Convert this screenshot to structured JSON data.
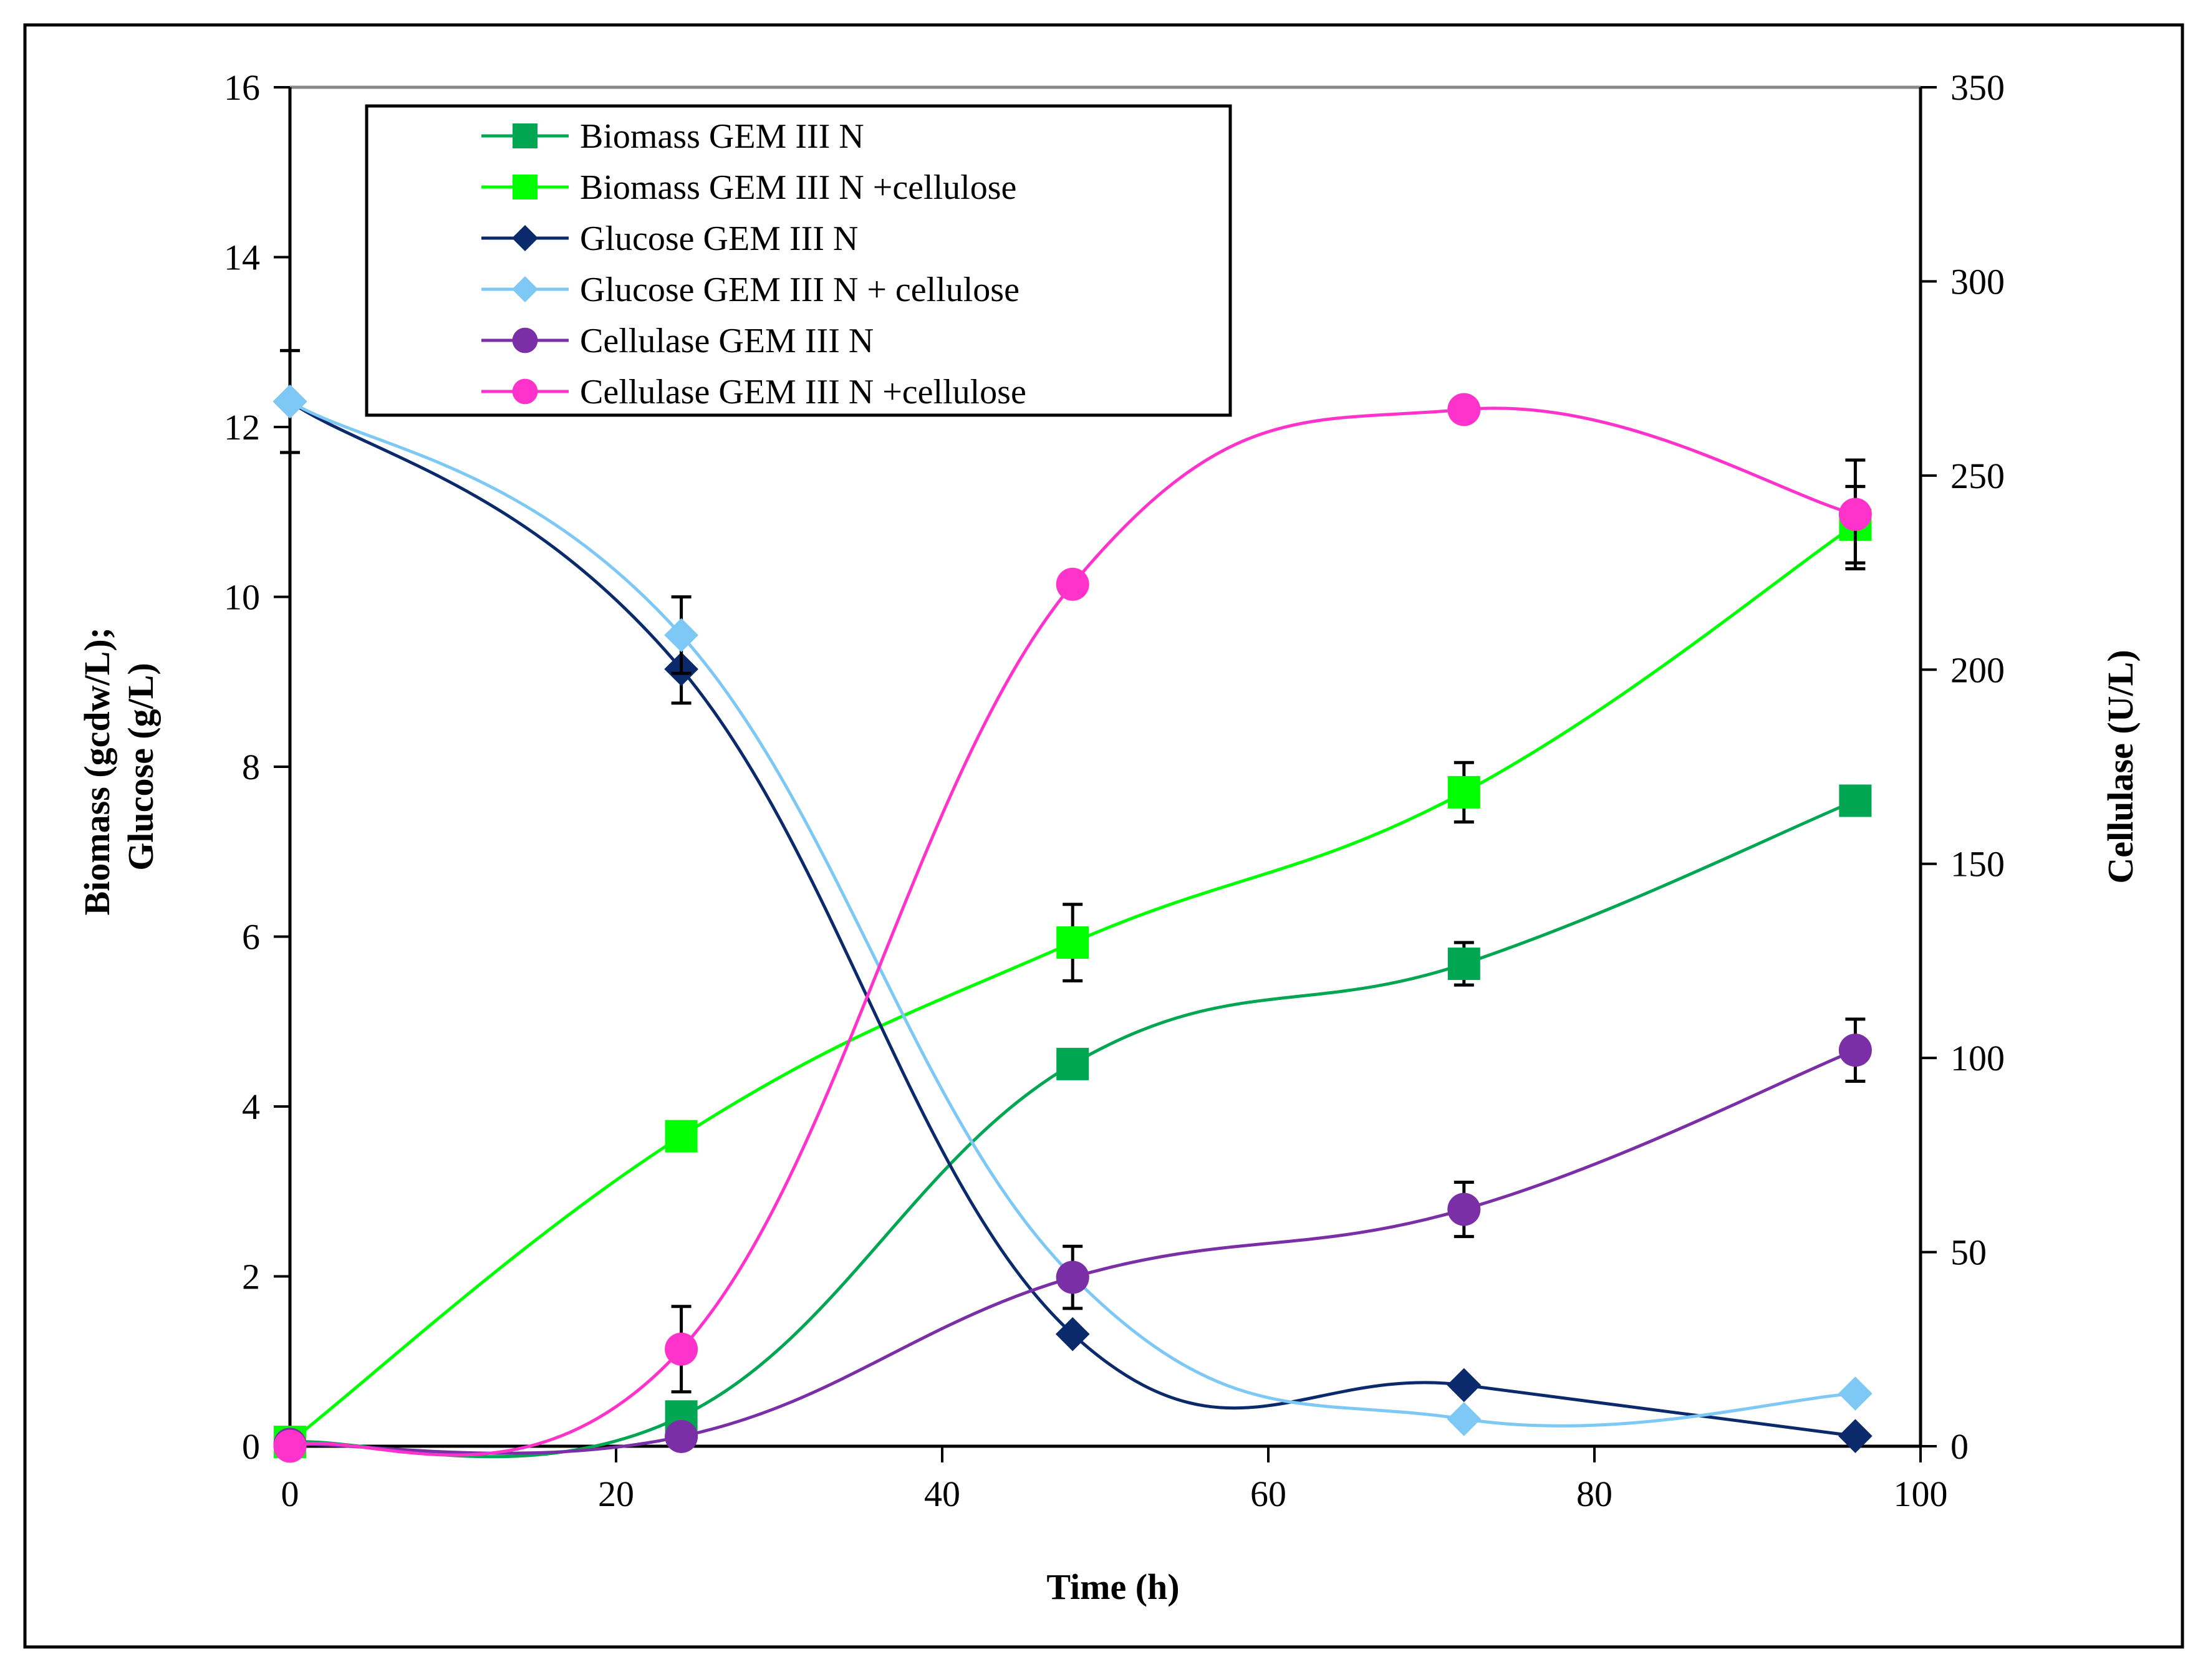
{
  "chart_data": {
    "type": "line",
    "xlabel": "Time (h)",
    "ylabel_left": "Biomass (gcdw/L);\nGlucose (g/L)",
    "ylabel_left_lines": [
      "Biomass (gcdw/L);",
      "Glucose (g/L)"
    ],
    "ylabel_right": "Cellulase (U/L)",
    "xlim": [
      0,
      100
    ],
    "ylim_left": [
      0,
      16
    ],
    "ylim_right": [
      0,
      350
    ],
    "xticks": [
      "0",
      "20",
      "40",
      "60",
      "80",
      "100"
    ],
    "xtick_values": [
      0,
      20,
      40,
      60,
      80,
      100
    ],
    "yticks_left": [
      "0",
      "2",
      "4",
      "6",
      "8",
      "10",
      "12",
      "14",
      "16"
    ],
    "ytick_values_left": [
      0,
      2,
      4,
      6,
      8,
      10,
      12,
      14,
      16
    ],
    "yticks_right": [
      "0",
      "50",
      "100",
      "150",
      "200",
      "250",
      "300",
      "350"
    ],
    "ytick_values_right": [
      0,
      50,
      100,
      150,
      200,
      250,
      300,
      350
    ],
    "legend_position": "top-left",
    "series": [
      {
        "name": "Biomass GEM III N",
        "axis": "left",
        "marker": "square",
        "color": "#00A651",
        "x": [
          0,
          24,
          48,
          72,
          96
        ],
        "y": [
          0.05,
          0.35,
          4.5,
          5.68,
          7.6
        ],
        "err": [
          0,
          0,
          0,
          0.25,
          0
        ]
      },
      {
        "name": "Biomass GEM III N +cellulose",
        "axis": "left",
        "marker": "square",
        "color": "#00FF00",
        "x": [
          0,
          24,
          48,
          72,
          96
        ],
        "y": [
          0.05,
          3.65,
          5.93,
          7.7,
          10.85
        ],
        "err": [
          0,
          0,
          0.45,
          0.35,
          0.45
        ]
      },
      {
        "name": "Glucose GEM III N",
        "axis": "left",
        "marker": "diamond",
        "color": "#0A2A6B",
        "x": [
          0,
          24,
          48,
          72,
          96
        ],
        "y": [
          12.3,
          9.15,
          1.32,
          0.72,
          0.12
        ],
        "err": [
          0,
          0.4,
          0,
          0,
          0
        ]
      },
      {
        "name": "Glucose GEM III N + cellulose",
        "axis": "left",
        "marker": "diamond",
        "color": "#7EC8F5",
        "x": [
          0,
          24,
          48,
          72,
          96
        ],
        "y": [
          12.3,
          9.55,
          2.0,
          0.32,
          0.62
        ],
        "err": [
          0.6,
          0.45,
          0,
          0,
          0
        ]
      },
      {
        "name": "Cellulase GEM III N",
        "axis": "right",
        "marker": "circle",
        "color": "#7B2FA6",
        "x": [
          0,
          24,
          48,
          72,
          96
        ],
        "y": [
          0.5,
          2.5,
          43.5,
          61,
          102
        ],
        "err": [
          0,
          0,
          8,
          7,
          8
        ]
      },
      {
        "name": "Cellulase GEM III N +cellulose",
        "axis": "right",
        "marker": "circle",
        "color": "#FF33CC",
        "x": [
          0,
          24,
          48,
          72,
          96
        ],
        "y": [
          0,
          25,
          222,
          267,
          240
        ],
        "err": [
          0,
          11,
          0,
          0,
          14
        ]
      }
    ]
  }
}
